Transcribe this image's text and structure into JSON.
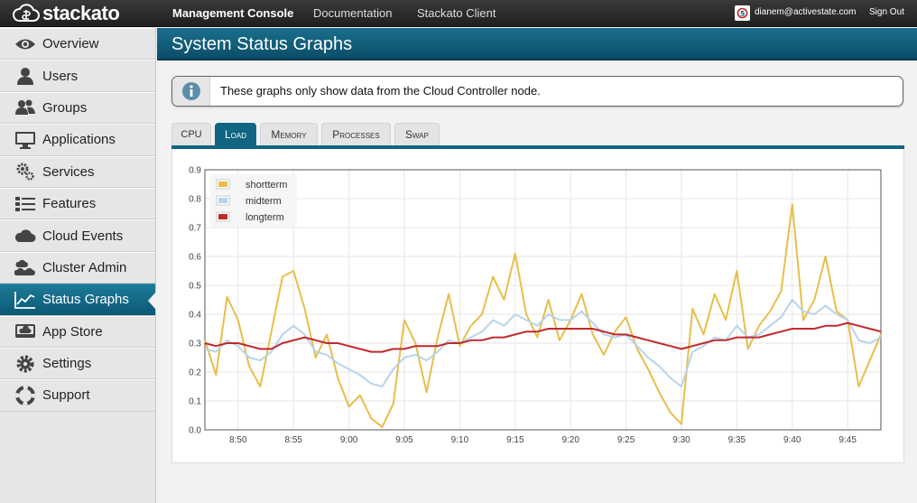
{
  "brand": {
    "logo_text": "stackato"
  },
  "topnav": {
    "items": [
      "Management Console",
      "Documentation",
      "Stackato Client"
    ],
    "active": "Management Console",
    "user_email": "dianem@activestate.com",
    "signout": "Sign Out"
  },
  "sidebar": {
    "items": [
      {
        "label": "Overview",
        "icon": "eye-icon"
      },
      {
        "label": "Users",
        "icon": "user-icon"
      },
      {
        "label": "Groups",
        "icon": "group-icon"
      },
      {
        "label": "Applications",
        "icon": "monitor-icon"
      },
      {
        "label": "Services",
        "icon": "gears-icon"
      },
      {
        "label": "Features",
        "icon": "list-icon"
      },
      {
        "label": "Cloud Events",
        "icon": "cloud-icon"
      },
      {
        "label": "Cluster Admin",
        "icon": "cluster-icon"
      },
      {
        "label": "Status Graphs",
        "icon": "chart-icon"
      },
      {
        "label": "App Store",
        "icon": "store-icon"
      },
      {
        "label": "Settings",
        "icon": "gear-icon"
      },
      {
        "label": "Support",
        "icon": "lifebuoy-icon"
      }
    ],
    "active": "Status Graphs"
  },
  "page": {
    "title": "System Status Graphs",
    "info": "These graphs only show data from the Cloud Controller node."
  },
  "tabs": {
    "items": [
      "CPU",
      "Load",
      "Memory",
      "Processes",
      "Swap"
    ],
    "active": "Load"
  },
  "colors": {
    "accent": "#0f6582",
    "shortterm": "#e8be4a",
    "midterm": "#b7d4ec",
    "longterm": "#c0292b"
  },
  "chart_data": {
    "type": "line",
    "title": "",
    "xlabel": "",
    "ylabel": "",
    "ylim": [
      0,
      0.9
    ],
    "xlim": [
      "8:47",
      "9:48"
    ],
    "yticks": [
      "0.0",
      "0.1",
      "0.2",
      "0.3",
      "0.4",
      "0.5",
      "0.6",
      "0.7",
      "0.8",
      "0.9"
    ],
    "xticks": [
      "8:50",
      "8:55",
      "9:00",
      "9:05",
      "9:10",
      "9:15",
      "9:20",
      "9:25",
      "9:30",
      "9:35",
      "9:40",
      "9:45"
    ],
    "grid": true,
    "legend_position": "top-left",
    "series": [
      {
        "name": "shortterm",
        "color": "#e8be4a",
        "x": [
          "8:47",
          "8:48",
          "8:49",
          "8:50",
          "8:51",
          "8:52",
          "8:53",
          "8:54",
          "8:55",
          "8:56",
          "8:57",
          "8:58",
          "8:59",
          "9:00",
          "9:01",
          "9:02",
          "9:03",
          "9:04",
          "9:05",
          "9:06",
          "9:07",
          "9:08",
          "9:09",
          "9:10",
          "9:11",
          "9:12",
          "9:13",
          "9:14",
          "9:15",
          "9:16",
          "9:17",
          "9:18",
          "9:19",
          "9:20",
          "9:21",
          "9:22",
          "9:23",
          "9:24",
          "9:25",
          "9:26",
          "9:27",
          "9:28",
          "9:29",
          "9:30",
          "9:31",
          "9:32",
          "9:33",
          "9:34",
          "9:35",
          "9:36",
          "9:37",
          "9:38",
          "9:39",
          "9:40",
          "9:41",
          "9:42",
          "9:43",
          "9:44",
          "9:45",
          "9:46",
          "9:47",
          "9:48"
        ],
        "values": [
          0.31,
          0.19,
          0.46,
          0.38,
          0.22,
          0.15,
          0.34,
          0.53,
          0.55,
          0.42,
          0.25,
          0.33,
          0.18,
          0.08,
          0.12,
          0.04,
          0.01,
          0.09,
          0.38,
          0.3,
          0.13,
          0.32,
          0.47,
          0.29,
          0.36,
          0.4,
          0.53,
          0.45,
          0.61,
          0.4,
          0.32,
          0.45,
          0.31,
          0.38,
          0.47,
          0.33,
          0.26,
          0.34,
          0.39,
          0.28,
          0.21,
          0.13,
          0.06,
          0.02,
          0.42,
          0.33,
          0.47,
          0.38,
          0.55,
          0.28,
          0.36,
          0.41,
          0.48,
          0.78,
          0.38,
          0.45,
          0.6,
          0.41,
          0.38,
          0.15,
          0.24,
          0.33
        ]
      },
      {
        "name": "midterm",
        "color": "#b7d4ec",
        "x": [
          "8:47",
          "8:48",
          "8:49",
          "8:50",
          "8:51",
          "8:52",
          "8:53",
          "8:54",
          "8:55",
          "8:56",
          "8:57",
          "8:58",
          "8:59",
          "9:00",
          "9:01",
          "9:02",
          "9:03",
          "9:04",
          "9:05",
          "9:06",
          "9:07",
          "9:08",
          "9:09",
          "9:10",
          "9:11",
          "9:12",
          "9:13",
          "9:14",
          "9:15",
          "9:16",
          "9:17",
          "9:18",
          "9:19",
          "9:20",
          "9:21",
          "9:22",
          "9:23",
          "9:24",
          "9:25",
          "9:26",
          "9:27",
          "9:28",
          "9:29",
          "9:30",
          "9:31",
          "9:32",
          "9:33",
          "9:34",
          "9:35",
          "9:36",
          "9:37",
          "9:38",
          "9:39",
          "9:40",
          "9:41",
          "9:42",
          "9:43",
          "9:44",
          "9:45",
          "9:46",
          "9:47",
          "9:48"
        ],
        "values": [
          0.28,
          0.27,
          0.31,
          0.29,
          0.25,
          0.24,
          0.27,
          0.33,
          0.36,
          0.33,
          0.27,
          0.26,
          0.23,
          0.21,
          0.19,
          0.16,
          0.15,
          0.21,
          0.25,
          0.26,
          0.24,
          0.27,
          0.31,
          0.3,
          0.32,
          0.34,
          0.38,
          0.36,
          0.4,
          0.38,
          0.36,
          0.4,
          0.38,
          0.38,
          0.41,
          0.37,
          0.33,
          0.32,
          0.33,
          0.29,
          0.25,
          0.22,
          0.18,
          0.15,
          0.27,
          0.29,
          0.32,
          0.31,
          0.36,
          0.32,
          0.33,
          0.36,
          0.39,
          0.45,
          0.41,
          0.4,
          0.43,
          0.4,
          0.38,
          0.31,
          0.3,
          0.32
        ]
      },
      {
        "name": "longterm",
        "color": "#c0292b",
        "x": [
          "8:47",
          "8:48",
          "8:49",
          "8:50",
          "8:51",
          "8:52",
          "8:53",
          "8:54",
          "8:55",
          "8:56",
          "8:57",
          "8:58",
          "8:59",
          "9:00",
          "9:01",
          "9:02",
          "9:03",
          "9:04",
          "9:05",
          "9:06",
          "9:07",
          "9:08",
          "9:09",
          "9:10",
          "9:11",
          "9:12",
          "9:13",
          "9:14",
          "9:15",
          "9:16",
          "9:17",
          "9:18",
          "9:19",
          "9:20",
          "9:21",
          "9:22",
          "9:23",
          "9:24",
          "9:25",
          "9:26",
          "9:27",
          "9:28",
          "9:29",
          "9:30",
          "9:31",
          "9:32",
          "9:33",
          "9:34",
          "9:35",
          "9:36",
          "9:37",
          "9:38",
          "9:39",
          "9:40",
          "9:41",
          "9:42",
          "9:43",
          "9:44",
          "9:45",
          "9:46",
          "9:47",
          "9:48"
        ],
        "values": [
          0.3,
          0.29,
          0.3,
          0.3,
          0.29,
          0.28,
          0.28,
          0.3,
          0.31,
          0.32,
          0.31,
          0.3,
          0.3,
          0.29,
          0.28,
          0.27,
          0.27,
          0.28,
          0.28,
          0.29,
          0.29,
          0.29,
          0.3,
          0.3,
          0.31,
          0.31,
          0.32,
          0.32,
          0.33,
          0.34,
          0.34,
          0.35,
          0.35,
          0.35,
          0.35,
          0.35,
          0.34,
          0.33,
          0.33,
          0.32,
          0.31,
          0.3,
          0.29,
          0.28,
          0.29,
          0.3,
          0.31,
          0.31,
          0.32,
          0.32,
          0.32,
          0.33,
          0.34,
          0.35,
          0.35,
          0.35,
          0.36,
          0.36,
          0.37,
          0.36,
          0.35,
          0.34
        ]
      }
    ]
  }
}
